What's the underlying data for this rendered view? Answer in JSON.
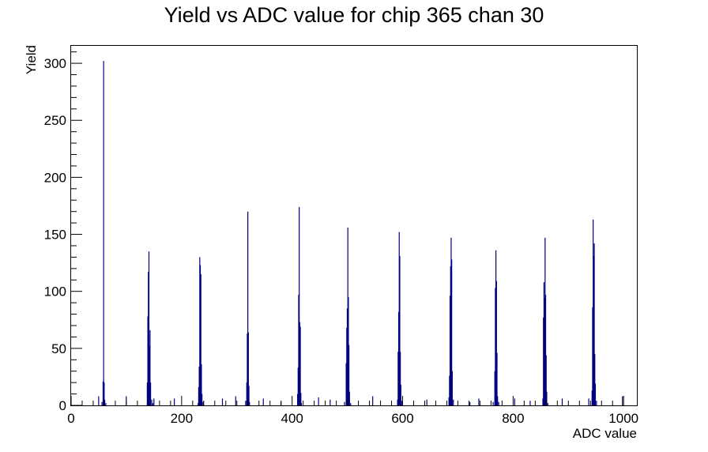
{
  "chart_data": {
    "type": "histogram",
    "title": "Yield vs ADC value for chip 365 chan 30",
    "xlabel": "ADC value",
    "ylabel": "Yield",
    "xlim": [
      0,
      1024
    ],
    "ylim": [
      0,
      316
    ],
    "x_ticks": [
      0,
      200,
      400,
      600,
      800,
      1000
    ],
    "y_ticks": [
      0,
      50,
      100,
      150,
      200,
      250,
      300
    ],
    "grid": false,
    "color": "#000080",
    "bins": [
      [
        49,
        8
      ],
      [
        55,
        3
      ],
      [
        57,
        21
      ],
      [
        58,
        302
      ],
      [
        59,
        20
      ],
      [
        60,
        5
      ],
      [
        62,
        2
      ],
      [
        99,
        8
      ],
      [
        137,
        20
      ],
      [
        138,
        78
      ],
      [
        139,
        117
      ],
      [
        140,
        135
      ],
      [
        141,
        52
      ],
      [
        142,
        66
      ],
      [
        143,
        20
      ],
      [
        145,
        5
      ],
      [
        147,
        2
      ],
      [
        149,
        6
      ],
      [
        186,
        6
      ],
      [
        229,
        2
      ],
      [
        230,
        16
      ],
      [
        231,
        34
      ],
      [
        232,
        130
      ],
      [
        233,
        123
      ],
      [
        234,
        115
      ],
      [
        235,
        36
      ],
      [
        236,
        10
      ],
      [
        238,
        3
      ],
      [
        273,
        6
      ],
      [
        297,
        8
      ],
      [
        315,
        4
      ],
      [
        317,
        20
      ],
      [
        318,
        63
      ],
      [
        319,
        170
      ],
      [
        320,
        64
      ],
      [
        321,
        17
      ],
      [
        322,
        3
      ],
      [
        347,
        6
      ],
      [
        379,
        3
      ],
      [
        409,
        10
      ],
      [
        410,
        33
      ],
      [
        411,
        97
      ],
      [
        412,
        174
      ],
      [
        413,
        73
      ],
      [
        414,
        69
      ],
      [
        415,
        11
      ],
      [
        416,
        2
      ],
      [
        447,
        7
      ],
      [
        468,
        5
      ],
      [
        494,
        3
      ],
      [
        497,
        37
      ],
      [
        498,
        68
      ],
      [
        499,
        85
      ],
      [
        500,
        156
      ],
      [
        501,
        95
      ],
      [
        502,
        53
      ],
      [
        503,
        12
      ],
      [
        505,
        2
      ],
      [
        545,
        8
      ],
      [
        590,
        5
      ],
      [
        591,
        47
      ],
      [
        592,
        82
      ],
      [
        593,
        152
      ],
      [
        594,
        131
      ],
      [
        595,
        47
      ],
      [
        596,
        18
      ],
      [
        598,
        4
      ],
      [
        643,
        5
      ],
      [
        683,
        7
      ],
      [
        684,
        26
      ],
      [
        685,
        96
      ],
      [
        686,
        122
      ],
      [
        687,
        147
      ],
      [
        688,
        128
      ],
      [
        689,
        30
      ],
      [
        691,
        5
      ],
      [
        721,
        3
      ],
      [
        737,
        6
      ],
      [
        763,
        3
      ],
      [
        766,
        30
      ],
      [
        767,
        103
      ],
      [
        768,
        136
      ],
      [
        769,
        109
      ],
      [
        770,
        46
      ],
      [
        771,
        8
      ],
      [
        773,
        3
      ],
      [
        802,
        6
      ],
      [
        830,
        4
      ],
      [
        853,
        6
      ],
      [
        854,
        77
      ],
      [
        855,
        108
      ],
      [
        856,
        94
      ],
      [
        857,
        147
      ],
      [
        858,
        97
      ],
      [
        859,
        44
      ],
      [
        860,
        12
      ],
      [
        862,
        2
      ],
      [
        888,
        6
      ],
      [
        936,
        6
      ],
      [
        942,
        13
      ],
      [
        943,
        86
      ],
      [
        944,
        163
      ],
      [
        945,
        131
      ],
      [
        946,
        142
      ],
      [
        947,
        45
      ],
      [
        948,
        19
      ],
      [
        950,
        4
      ],
      [
        997,
        8
      ]
    ]
  }
}
